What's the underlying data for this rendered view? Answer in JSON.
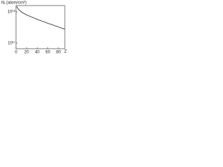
{
  "chart_data": {
    "type": "line",
    "y_label": "Nⱼ (atom/cm²)",
    "x_label": "Z",
    "x": [
      1,
      5,
      10,
      20,
      30,
      40,
      50,
      60,
      70,
      80,
      92
    ],
    "series": [
      {
        "name": null,
        "color": "#222222",
        "values": [
          1.5e+18,
          1.2e+18,
          1e+18,
          8e+17,
          6.8e+17,
          5.8e+17,
          5e+17,
          4.3e+17,
          3.8e+17,
          3.3e+17,
          2.8e+17
        ]
      }
    ],
    "xlim": [
      0,
      92
    ],
    "xticks": [
      0,
      20,
      40,
      60,
      80
    ],
    "ylim": [
      6.6e+16,
      1.6e+18
    ],
    "yticks": [
      {
        "value": 1e+17,
        "label": "10¹⁷"
      },
      {
        "value": 1e+18,
        "label": "10¹⁸"
      }
    ],
    "log_y": true
  }
}
